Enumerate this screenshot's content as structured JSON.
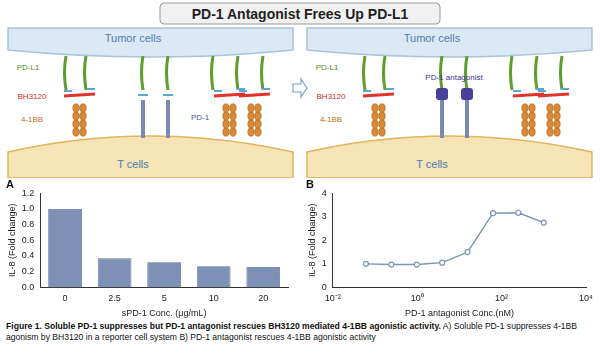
{
  "title": "PD-1 Antagonist Frees Up PD-L1",
  "diagram": {
    "left": {
      "tumor": "Tumor cells",
      "tcell": "T cells",
      "pdl1": "PD-L1",
      "bh3120": "BH3120",
      "receptor": "4-1BB",
      "pd1": "PD-1"
    },
    "right": {
      "tumor": "Tumor cells",
      "tcell": "T cells",
      "pdl1": "PD-L1",
      "bh3120": "BH3120",
      "receptor": "4-1BB",
      "antagonist": "PD-1 antagonist"
    }
  },
  "chart_data": [
    {
      "type": "bar",
      "title": "A",
      "x_label": "sPD-1 Conc. (μg/mL)",
      "y_label": "IL-8 (Fold change)",
      "categories": [
        "0",
        "2.5",
        "5",
        "10",
        "20"
      ],
      "values": [
        1.0,
        0.37,
        0.32,
        0.27,
        0.26
      ],
      "color": "#7d90b6",
      "ylim": [
        0,
        1.2
      ],
      "yticks": [
        {
          "value": 0,
          "label": "0.0"
        },
        {
          "value": 0.2,
          "label": "0.2"
        },
        {
          "value": 0.4,
          "label": "0.4"
        },
        {
          "value": 0.6,
          "label": "0.6"
        },
        {
          "value": 0.8,
          "label": "0.8"
        },
        {
          "value": 1.0,
          "label": "1.0"
        },
        {
          "value": 1.2,
          "label": "1.2"
        }
      ],
      "grid": false
    },
    {
      "type": "line",
      "title": "B",
      "x_label": "PD-1 antagonist Conc.(nM)",
      "y_label": "IL-8 (Fold change)",
      "x": [
        0.061,
        0.244,
        0.977,
        3.91,
        15.6,
        62.5,
        250,
        1000
      ],
      "values": [
        1.0,
        0.97,
        0.97,
        1.05,
        1.5,
        3.15,
        3.17,
        2.75
      ],
      "color": "#7d94b8",
      "marker": "circle",
      "log": "x",
      "xlim": [
        0.01,
        10000
      ],
      "xticks": [
        {
          "value": 0.01,
          "label": "10⁻²"
        },
        {
          "value": 1,
          "label": "10⁰"
        },
        {
          "value": 100,
          "label": "10²"
        },
        {
          "value": 10000,
          "label": "10⁴"
        }
      ],
      "ylim": [
        0,
        4
      ],
      "yticks": [
        0,
        1,
        2,
        3,
        4
      ],
      "grid": false
    }
  ],
  "caption": {
    "heading": "Figure 1. Soluble PD-1 suppresses but PD-1 antagonist rescues BH3120 mediated 4-1BB agonistic activity.",
    "text": "A) Soluble PD-1 suppresses 4-1BB agonism by BH3120 in a reporter cell system B) PD-1 antagonist rescues 4-1BB agonistic activity"
  }
}
